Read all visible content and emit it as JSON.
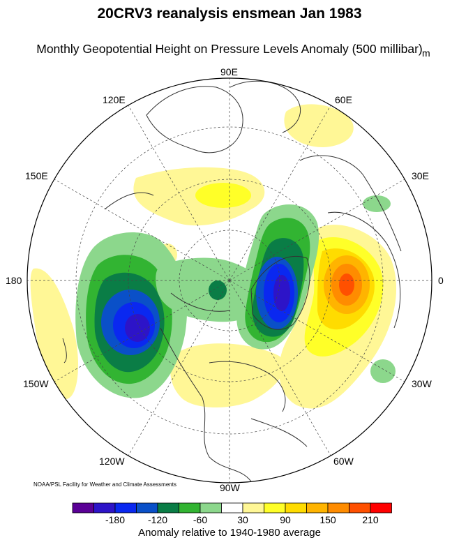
{
  "header": {
    "title": "20CRV3 reanalysis ensmean Jan 1983",
    "subtitle": "Monthly Geopotential Height on Pressure Levels Anomaly (500 millibar)",
    "unit": "m"
  },
  "map": {
    "projection": "north-polar-stereographic",
    "longitude_labels": {
      "lon_90E": "90E",
      "lon_60E": "60E",
      "lon_30E": "30E",
      "lon_0": "0",
      "lon_30W": "30W",
      "lon_60W": "60W",
      "lon_90W": "90W",
      "lon_120W": "120W",
      "lon_150W": "150W",
      "lon_180": "180",
      "lon_150E": "150E",
      "lon_120E": "120E"
    },
    "credit": "NOAA/PSL Facility for Weather and Climate Assessments"
  },
  "colorbar": {
    "title": "Anomaly relative to 1940-1980 average",
    "tick_labels": [
      "-180",
      "-120",
      "-60",
      "30",
      "90",
      "150",
      "210"
    ],
    "colors": [
      "#5a0096",
      "#2d14c8",
      "#0a28f0",
      "#0a50c8",
      "#0a7d46",
      "#32b432",
      "#8cd78c",
      "#ffffff",
      "#fff796",
      "#ffff28",
      "#ffdc00",
      "#ffb400",
      "#ff8c00",
      "#ff5000",
      "#ff0000"
    ]
  }
}
